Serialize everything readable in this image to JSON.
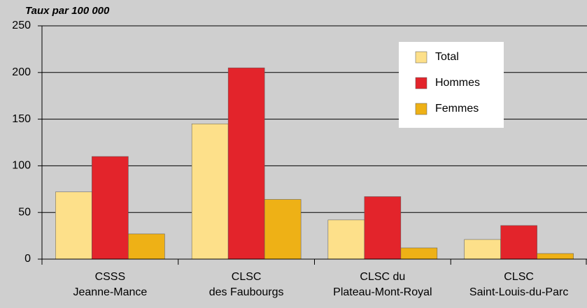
{
  "chart_data": {
    "type": "bar",
    "y_label": "Taux par 100 000",
    "categories": [
      [
        "CSSS",
        "Jeanne-Mance"
      ],
      [
        "CLSC",
        "des Faubourgs"
      ],
      [
        "CLSC du",
        "Plateau-Mont-Royal"
      ],
      [
        "CLSC",
        "Saint-Louis-du-Parc"
      ]
    ],
    "series": [
      {
        "name": "Total",
        "color": "#fde08a",
        "values": [
          72,
          145,
          42,
          21
        ]
      },
      {
        "name": "Hommes",
        "color": "#e3242b",
        "values": [
          110,
          205,
          67,
          36
        ]
      },
      {
        "name": "Femmes",
        "color": "#eeb116",
        "values": [
          27,
          64,
          12,
          6
        ]
      }
    ],
    "ylim": [
      0,
      250
    ],
    "yticks": [
      0,
      50,
      100,
      150,
      200,
      250
    ],
    "grid": true,
    "legend": "upper right"
  }
}
